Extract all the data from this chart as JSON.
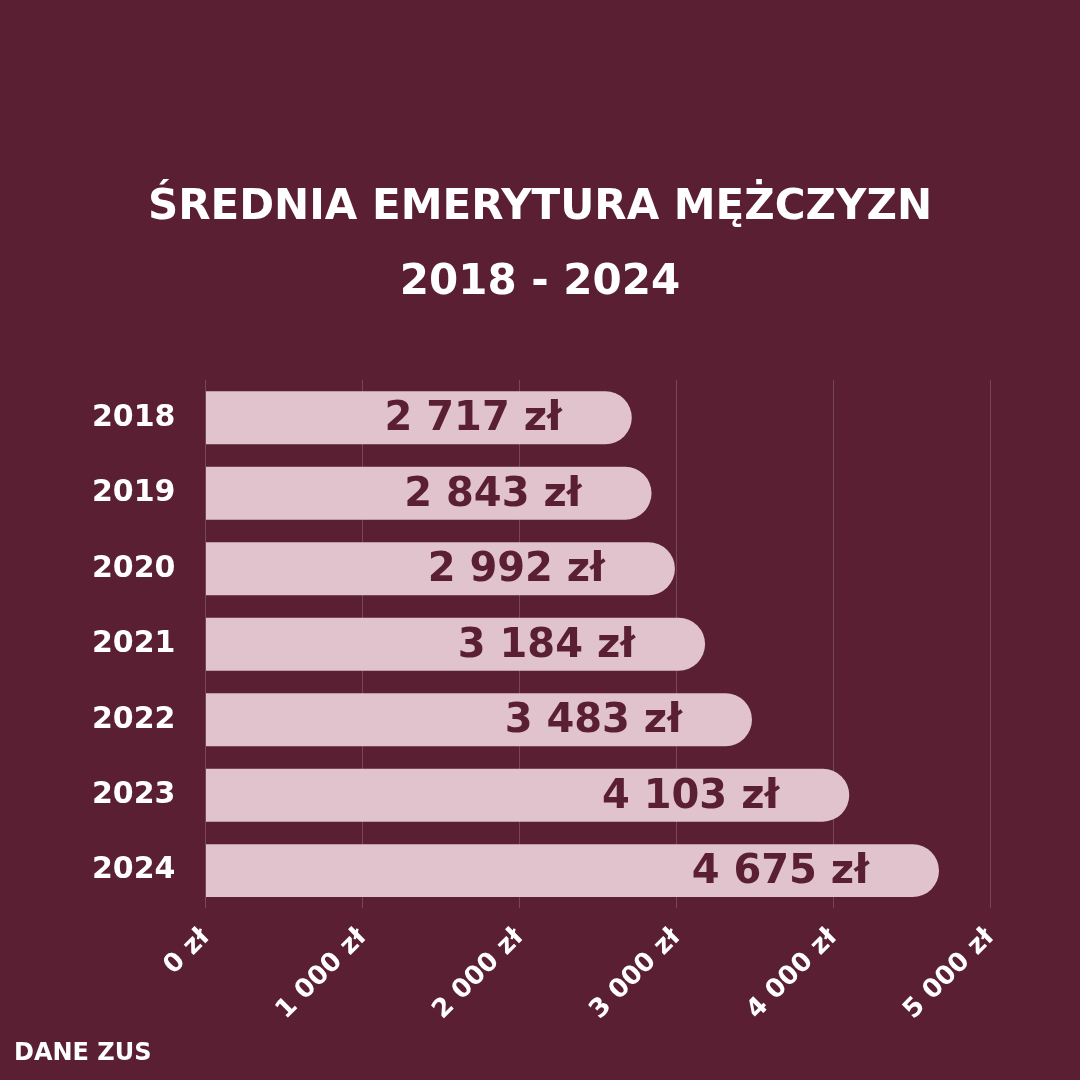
{
  "chart_data": {
    "type": "bar",
    "orientation": "horizontal",
    "title": "ŚREDNIA EMERYTURA MĘŻCZYZN",
    "subtitle": "2018 - 2024",
    "categories": [
      "2018",
      "2019",
      "2020",
      "2021",
      "2022",
      "2023",
      "2024"
    ],
    "values": [
      2717,
      2843,
      2992,
      3184,
      3483,
      4103,
      4675
    ],
    "value_labels": [
      "2 717 zł",
      "2 843 zł",
      "2 992 zł",
      "3 184 zł",
      "3 483 zł",
      "4 103 zł",
      "4 675 zł"
    ],
    "color": "#e0c3cc",
    "xlim": [
      0,
      5000
    ],
    "xticks": [
      {
        "value": 0,
        "label": "0 zł"
      },
      {
        "value": 1000,
        "label": "1 000 zł"
      },
      {
        "value": 2000,
        "label": "2 000 zł"
      },
      {
        "value": 3000,
        "label": "3 000 zł"
      },
      {
        "value": 4000,
        "label": "4 000 zł"
      },
      {
        "value": 5000,
        "label": "5 000 zł"
      }
    ],
    "grid": "x",
    "annotations": [
      "DANE ZUS"
    ]
  }
}
